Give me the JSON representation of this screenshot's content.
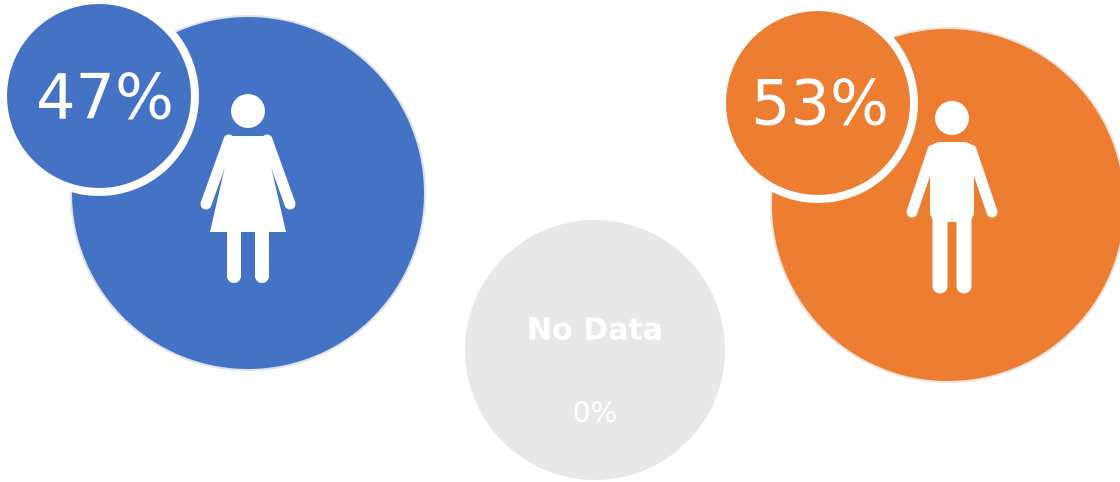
{
  "female": {
    "percent": "47%"
  },
  "male": {
    "percent": "53%"
  },
  "unknown": {
    "label": "No Data",
    "percent": "0%"
  }
}
